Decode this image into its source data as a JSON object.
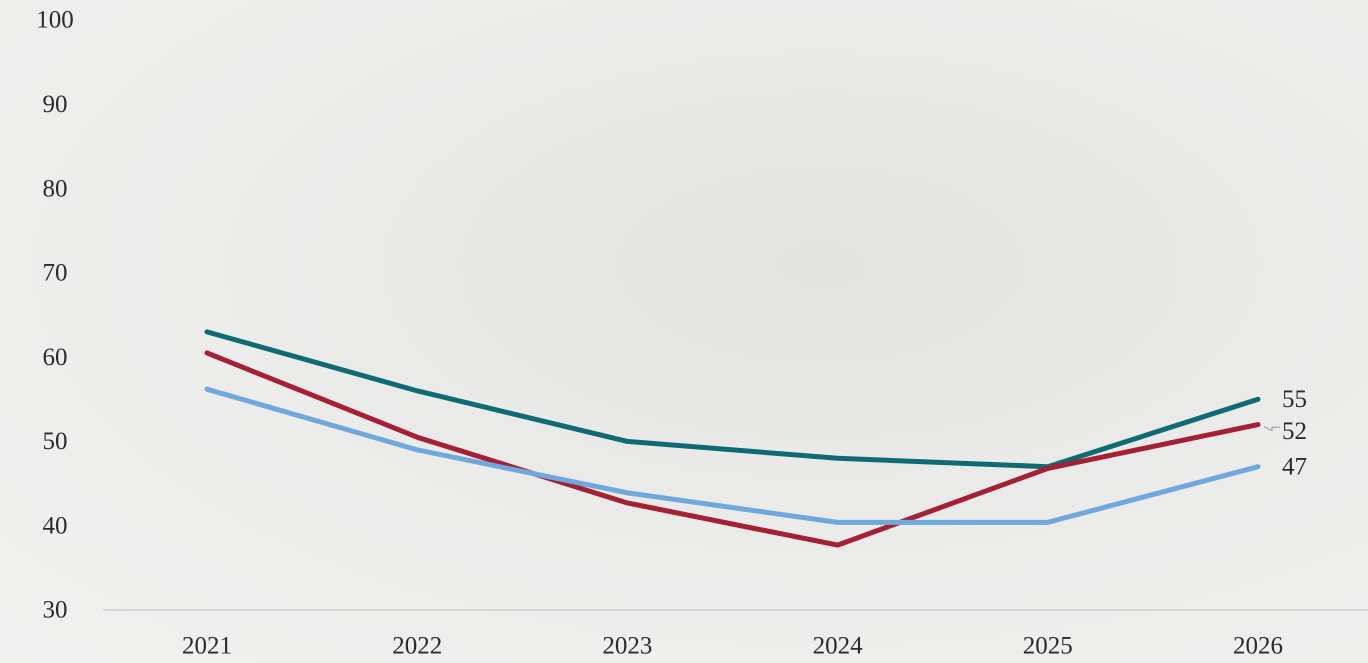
{
  "chart_data": {
    "type": "line",
    "x": [
      2021,
      2022,
      2023,
      2024,
      2025,
      2026
    ],
    "series": [
      {
        "color": "#0f6b73",
        "values": [
          63,
          56,
          50,
          48,
          47,
          55
        ]
      },
      {
        "color": "#a51f35",
        "values": [
          60.5,
          50.5,
          42.7,
          37.7,
          46.8,
          52
        ]
      },
      {
        "color": "#6fa8dc",
        "values": [
          56.2,
          49,
          43.9,
          40.4,
          40.4,
          47
        ]
      }
    ],
    "ylim": [
      30,
      100
    ],
    "yticks": [
      30,
      40,
      50,
      60,
      70,
      80,
      90,
      100
    ],
    "grid": false
  }
}
